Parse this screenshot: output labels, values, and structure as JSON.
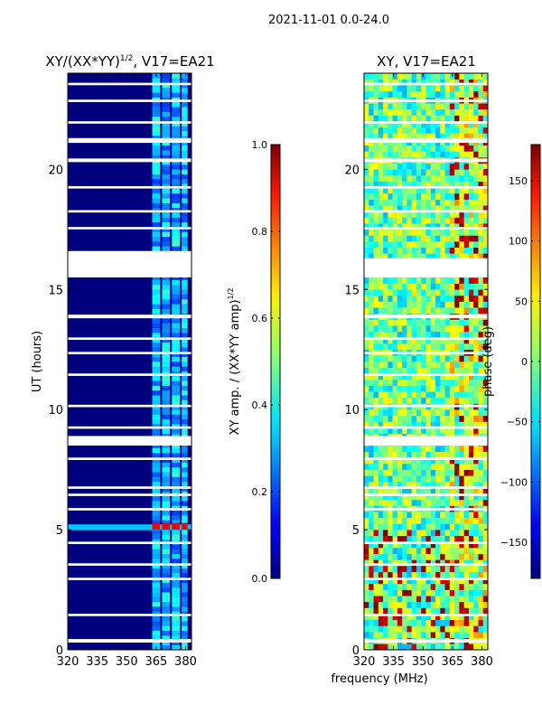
{
  "figure": {
    "suptitle": "2021-11-01 0.0-24.0",
    "shared_xlabel": "frequency (MHz)"
  },
  "chart_data": [
    {
      "type": "heatmap",
      "title": "XY/(XX*YY)",
      "title_sup": "1/2",
      "title_tail": ", V17=EA21",
      "xlabel": "",
      "ylabel": "UT (hours)",
      "xlim": [
        320,
        383
      ],
      "ylim": [
        0,
        24
      ],
      "xticks": [
        320,
        335,
        350,
        365,
        380
      ],
      "yticks": [
        0,
        5,
        10,
        15,
        20
      ],
      "colorbar": {
        "label": "XY amp. / (XX*YY amp)",
        "label_sup": "1/2",
        "range": [
          0.0,
          1.0
        ],
        "ticks": [
          "0.0",
          "0.2",
          "0.4",
          "0.6",
          "0.8",
          "1.0"
        ],
        "tick_values": [
          0.0,
          0.2,
          0.4,
          0.6,
          0.8,
          1.0
        ]
      },
      "colormap": "jet",
      "signal_channels_mhz": [
        [
          363,
          367
        ],
        [
          368,
          372
        ],
        [
          373,
          377
        ],
        [
          378,
          381
        ]
      ],
      "flagged_gaps_ut": [
        [
          23.5,
          23.6
        ],
        [
          22.8,
          22.9
        ],
        [
          21.9,
          22.0
        ],
        [
          21.1,
          21.3
        ],
        [
          20.3,
          20.45
        ],
        [
          19.2,
          19.3
        ],
        [
          18.2,
          18.3
        ],
        [
          17.5,
          17.6
        ],
        [
          16.2,
          16.6
        ],
        [
          15.5,
          16.3
        ],
        [
          13.8,
          13.95
        ],
        [
          12.9,
          13.0
        ],
        [
          12.3,
          12.4
        ],
        [
          11.4,
          11.5
        ],
        [
          10.1,
          10.2
        ],
        [
          9.2,
          9.3
        ],
        [
          8.5,
          8.9
        ],
        [
          7.9,
          8.0
        ],
        [
          6.7,
          6.8
        ],
        [
          6.4,
          6.5
        ],
        [
          5.8,
          5.9
        ],
        [
          4.4,
          4.5
        ],
        [
          3.5,
          3.6
        ],
        [
          2.9,
          3.0
        ],
        [
          1.4,
          1.5
        ],
        [
          0.3,
          0.45
        ]
      ],
      "bright_row_ut": 5.1
    },
    {
      "type": "heatmap",
      "title": "XY, V17=EA21",
      "xlabel": "",
      "ylabel": "",
      "xlim": [
        320,
        383
      ],
      "ylim": [
        0,
        24
      ],
      "xticks": [
        320,
        335,
        350,
        365,
        380
      ],
      "yticks": [
        0,
        5,
        10,
        15,
        20
      ],
      "colorbar": {
        "label": "phase (deg)",
        "range": [
          -180,
          180
        ],
        "ticks": [
          "−150",
          "−100",
          "−50",
          "0",
          "50",
          "100",
          "150"
        ],
        "tick_values": [
          -150,
          -100,
          -50,
          0,
          50,
          100,
          150
        ]
      },
      "colormap": "jet",
      "flagged_gaps_ut": [
        [
          23.5,
          23.6
        ],
        [
          22.8,
          22.9
        ],
        [
          21.9,
          22.0
        ],
        [
          21.1,
          21.3
        ],
        [
          20.3,
          20.45
        ],
        [
          19.2,
          19.3
        ],
        [
          18.2,
          18.3
        ],
        [
          17.5,
          17.6
        ],
        [
          15.5,
          16.3
        ],
        [
          13.8,
          13.95
        ],
        [
          12.9,
          13.0
        ],
        [
          12.3,
          12.4
        ],
        [
          11.4,
          11.5
        ],
        [
          10.1,
          10.2
        ],
        [
          9.2,
          9.3
        ],
        [
          8.5,
          8.9
        ],
        [
          7.9,
          8.0
        ],
        [
          6.7,
          6.8
        ],
        [
          6.4,
          6.5
        ],
        [
          5.8,
          5.9
        ],
        [
          4.4,
          4.5
        ],
        [
          3.5,
          3.6
        ],
        [
          2.9,
          3.0
        ],
        [
          1.4,
          1.5
        ],
        [
          0.3,
          0.45
        ]
      ]
    }
  ]
}
